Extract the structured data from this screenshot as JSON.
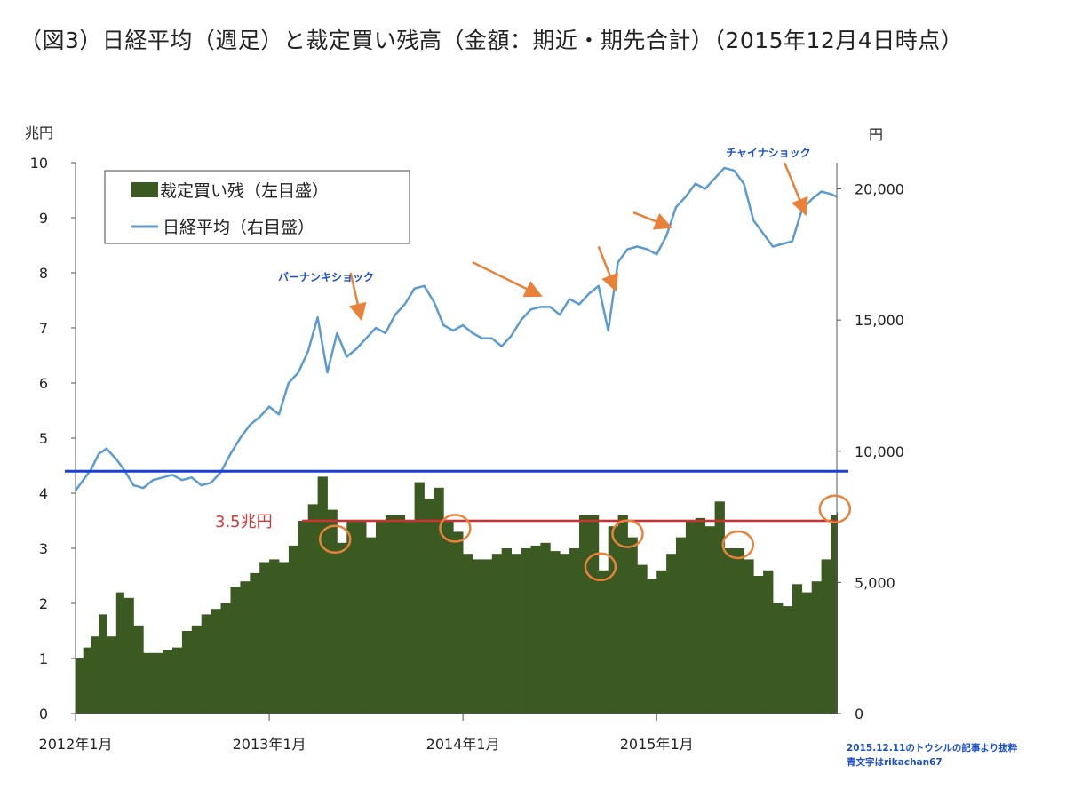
{
  "title": "（図3）日経平均（週足）と裁定買い残高（金額：期近・期先合計）（2015年12月4日時点）",
  "chart_data": {
    "type": "bar",
    "left_unit": "兆円",
    "right_unit": "円",
    "left_ylim": [
      0,
      10
    ],
    "right_ylim": [
      0,
      21000
    ],
    "left_ticks": [
      "0",
      "1",
      "2",
      "3",
      "4",
      "5",
      "6",
      "7",
      "8",
      "9",
      "10"
    ],
    "right_ticks": [
      "0",
      "5,000",
      "10,000",
      "15,000",
      "20,000"
    ],
    "x_labels": [
      "2012年1月",
      "2013年1月",
      "2014年1月",
      "2015年1月"
    ],
    "x_range": [
      "2012-01",
      "2015-12"
    ],
    "legend": [
      "裁定買い残（左目盛）",
      "日経平均（右目盛）"
    ],
    "colors": {
      "bars": "#3a5a22",
      "line": "#5b9bd0",
      "blue_line": "#1a3fd8",
      "red_line": "#d42e2e",
      "arrows": "#e8823a",
      "circles": "#e8823a"
    },
    "series": [
      {
        "name": "裁定買い残（左目盛）",
        "x": [
          2012.0,
          2012.04,
          2012.08,
          2012.12,
          2012.16,
          2012.21,
          2012.25,
          2012.3,
          2012.35,
          2012.4,
          2012.45,
          2012.5,
          2012.55,
          2012.6,
          2012.65,
          2012.7,
          2012.75,
          2012.8,
          2012.85,
          2012.9,
          2012.95,
          2013.0,
          2013.05,
          2013.1,
          2013.15,
          2013.2,
          2013.25,
          2013.3,
          2013.35,
          2013.4,
          2013.45,
          2013.5,
          2013.55,
          2013.6,
          2013.65,
          2013.7,
          2013.75,
          2013.8,
          2013.85,
          2013.9,
          2013.95,
          2014.0,
          2014.05,
          2014.1,
          2014.15,
          2014.2,
          2014.25,
          2014.3,
          2014.35,
          2014.4,
          2014.45,
          2014.5,
          2014.55,
          2014.6,
          2014.65,
          2014.7,
          2014.75,
          2014.8,
          2014.85,
          2014.9,
          2014.95,
          2015.0,
          2015.05,
          2015.1,
          2015.15,
          2015.2,
          2015.25,
          2015.3,
          2015.35,
          2015.4,
          2015.45,
          2015.5,
          2015.55,
          2015.6,
          2015.65,
          2015.7,
          2015.75,
          2015.8,
          2015.85,
          2015.9,
          2015.93
        ],
        "values": [
          1.0,
          1.2,
          1.4,
          1.8,
          1.4,
          2.2,
          2.1,
          1.6,
          1.1,
          1.1,
          1.15,
          1.2,
          1.5,
          1.6,
          1.8,
          1.9,
          2.0,
          2.3,
          2.4,
          2.55,
          2.75,
          2.8,
          2.75,
          3.05,
          3.5,
          3.8,
          4.3,
          3.7,
          3.1,
          3.5,
          3.5,
          3.2,
          3.5,
          3.6,
          3.6,
          3.5,
          4.2,
          3.9,
          4.1,
          3.5,
          3.3,
          2.9,
          2.8,
          2.8,
          2.9,
          3.0,
          2.9,
          3.0,
          3.05,
          3.1,
          2.95,
          2.9,
          3.0,
          3.6,
          3.6,
          2.6,
          3.4,
          3.6,
          3.2,
          2.7,
          2.45,
          2.6,
          2.9,
          3.2,
          3.5,
          3.55,
          3.4,
          3.85,
          3.0,
          3.0,
          2.8,
          2.5,
          2.6,
          2.0,
          1.95,
          2.35,
          2.2,
          2.4,
          2.8,
          3.6,
          3.65
        ]
      },
      {
        "name": "日経平均（右目盛）",
        "x": [
          2012.0,
          2012.04,
          2012.08,
          2012.12,
          2012.16,
          2012.21,
          2012.25,
          2012.3,
          2012.35,
          2012.4,
          2012.45,
          2012.5,
          2012.55,
          2012.6,
          2012.65,
          2012.7,
          2012.75,
          2012.8,
          2012.85,
          2012.9,
          2012.95,
          2013.0,
          2013.05,
          2013.1,
          2013.15,
          2013.2,
          2013.25,
          2013.3,
          2013.35,
          2013.4,
          2013.45,
          2013.5,
          2013.55,
          2013.6,
          2013.65,
          2013.7,
          2013.75,
          2013.8,
          2013.85,
          2013.9,
          2013.95,
          2014.0,
          2014.05,
          2014.1,
          2014.15,
          2014.2,
          2014.25,
          2014.3,
          2014.35,
          2014.4,
          2014.45,
          2014.5,
          2014.55,
          2014.6,
          2014.65,
          2014.7,
          2014.75,
          2014.8,
          2014.85,
          2014.9,
          2014.95,
          2015.0,
          2015.05,
          2015.1,
          2015.15,
          2015.2,
          2015.25,
          2015.3,
          2015.35,
          2015.4,
          2015.45,
          2015.5,
          2015.55,
          2015.6,
          2015.65,
          2015.7,
          2015.75,
          2015.8,
          2015.85,
          2015.9,
          2015.93
        ],
        "values": [
          8500,
          8900,
          9300,
          9900,
          10100,
          9700,
          9300,
          8700,
          8600,
          8900,
          9000,
          9100,
          8900,
          9000,
          8700,
          8800,
          9200,
          9900,
          10500,
          11000,
          11300,
          11700,
          11400,
          12600,
          13000,
          13800,
          15100,
          13000,
          14500,
          13600,
          13900,
          14300,
          14700,
          14500,
          15200,
          15600,
          16200,
          16300,
          15700,
          14800,
          14600,
          14800,
          14500,
          14300,
          14300,
          14000,
          14400,
          15000,
          15400,
          15500,
          15500,
          15200,
          15800,
          15600,
          16000,
          16300,
          14600,
          17200,
          17700,
          17800,
          17700,
          17500,
          18200,
          19300,
          19700,
          20200,
          20000,
          20400,
          20800,
          20700,
          20200,
          18800,
          18300,
          17800,
          17900,
          18000,
          19200,
          19600,
          19900,
          19800,
          19700
        ]
      }
    ],
    "hlines": [
      {
        "value": 4.4,
        "axis": "left",
        "color": "blue"
      },
      {
        "value": 3.5,
        "axis": "left",
        "color": "red",
        "label": "3.5兆円"
      }
    ],
    "annotations": {
      "bernanke": "バーナンキショック",
      "china": "チャイナショック"
    },
    "circled_peaks_x": [
      2013.34,
      2013.96,
      2014.71,
      2014.85,
      2015.42,
      2015.92
    ],
    "arrows": [
      {
        "from": [
          2013.42,
          16800
        ],
        "to": [
          2013.47,
          15200
        ]
      },
      {
        "from": [
          2014.05,
          17200
        ],
        "to": [
          2014.38,
          16000
        ]
      },
      {
        "from": [
          2014.7,
          17800
        ],
        "to": [
          2014.78,
          16300
        ]
      },
      {
        "from": [
          2014.88,
          19100
        ],
        "to": [
          2015.05,
          18600
        ]
      },
      {
        "from": [
          2015.66,
          21000
        ],
        "to": [
          2015.76,
          19200
        ]
      }
    ]
  },
  "source_note_1": "2015.12.11のトウシルの記事より抜粋",
  "source_note_2": "青文字はrikachan67"
}
